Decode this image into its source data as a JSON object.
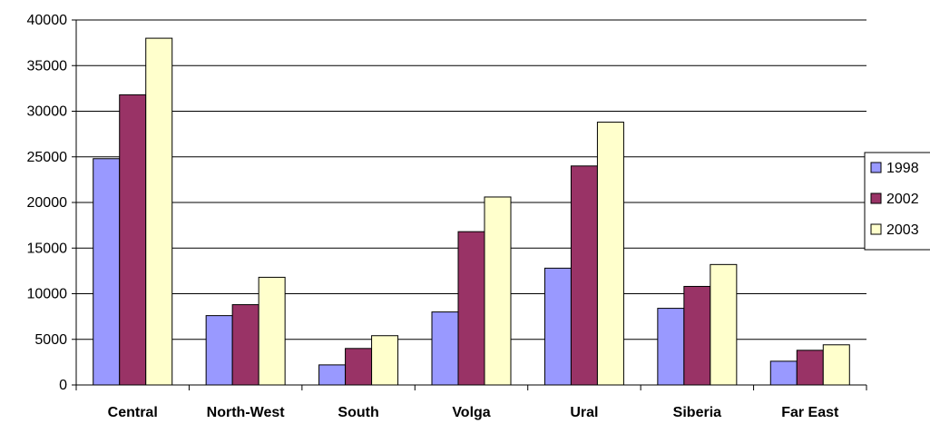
{
  "chart_data": {
    "type": "bar",
    "title": "",
    "xlabel": "",
    "ylabel": "",
    "categories": [
      "Central",
      "North-West",
      "South",
      "Volga",
      "Ural",
      "Siberia",
      "Far East"
    ],
    "series": [
      {
        "name": "1998",
        "color": "#9999ff",
        "values": [
          24800,
          7600,
          2200,
          8000,
          12800,
          8400,
          2600
        ]
      },
      {
        "name": "2002",
        "color": "#993366",
        "values": [
          31800,
          8800,
          4000,
          16800,
          24000,
          10800,
          3800
        ]
      },
      {
        "name": "2003",
        "color": "#ffffcc",
        "values": [
          38000,
          11800,
          5400,
          20600,
          28800,
          13200,
          4400
        ]
      }
    ],
    "ylim": [
      0,
      40000
    ],
    "yticks": [
      0,
      5000,
      10000,
      15000,
      20000,
      25000,
      30000,
      35000,
      40000
    ],
    "grid": true,
    "legend_position": "right"
  }
}
